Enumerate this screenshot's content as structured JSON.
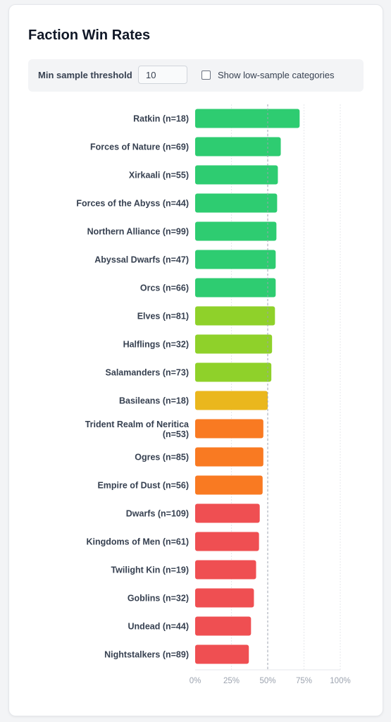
{
  "title": "Faction Win Rates",
  "controls": {
    "threshold_label": "Min sample threshold",
    "threshold_value": "10",
    "checkbox_label": "Show low-sample categories",
    "checkbox_checked": false
  },
  "colors": {
    "green": "#2ecc71",
    "lime": "#8fd12a",
    "yellow": "#eab71d",
    "orange": "#f97a22",
    "red": "#ef4f52"
  },
  "chart_data": {
    "type": "bar",
    "orientation": "horizontal",
    "categories": [
      "Ratkin (n=18)",
      "Forces of Nature (n=69)",
      "Xirkaali (n=55)",
      "Forces of the Abyss (n=44)",
      "Northern Alliance (n=99)",
      "Abyssal Dwarfs (n=47)",
      "Orcs (n=66)",
      "Elves (n=81)",
      "Halflings (n=32)",
      "Salamanders (n=73)",
      "Basileans (n=18)",
      "Trident Realm of Neritica (n=53)",
      "Ogres (n=85)",
      "Empire of Dust (n=56)",
      "Dwarfs (n=109)",
      "Kingdoms of Men (n=61)",
      "Twilight Kin (n=19)",
      "Goblins (n=32)",
      "Undead (n=44)",
      "Nightstalkers (n=89)"
    ],
    "values": [
      72,
      59,
      57,
      56.5,
      56,
      55.5,
      55.5,
      55,
      53,
      52.5,
      50,
      47,
      47,
      46.5,
      44.5,
      44,
      42,
      40.5,
      38.5,
      37
    ],
    "bar_colors": [
      "green",
      "green",
      "green",
      "green",
      "green",
      "green",
      "green",
      "lime",
      "lime",
      "lime",
      "yellow",
      "orange",
      "orange",
      "orange",
      "red",
      "red",
      "red",
      "red",
      "red",
      "red"
    ],
    "x_ticks": [
      "0%",
      "25%",
      "50%",
      "75%",
      "100%"
    ],
    "xlim": [
      0,
      100
    ],
    "reference_line": 50,
    "grid": true
  }
}
